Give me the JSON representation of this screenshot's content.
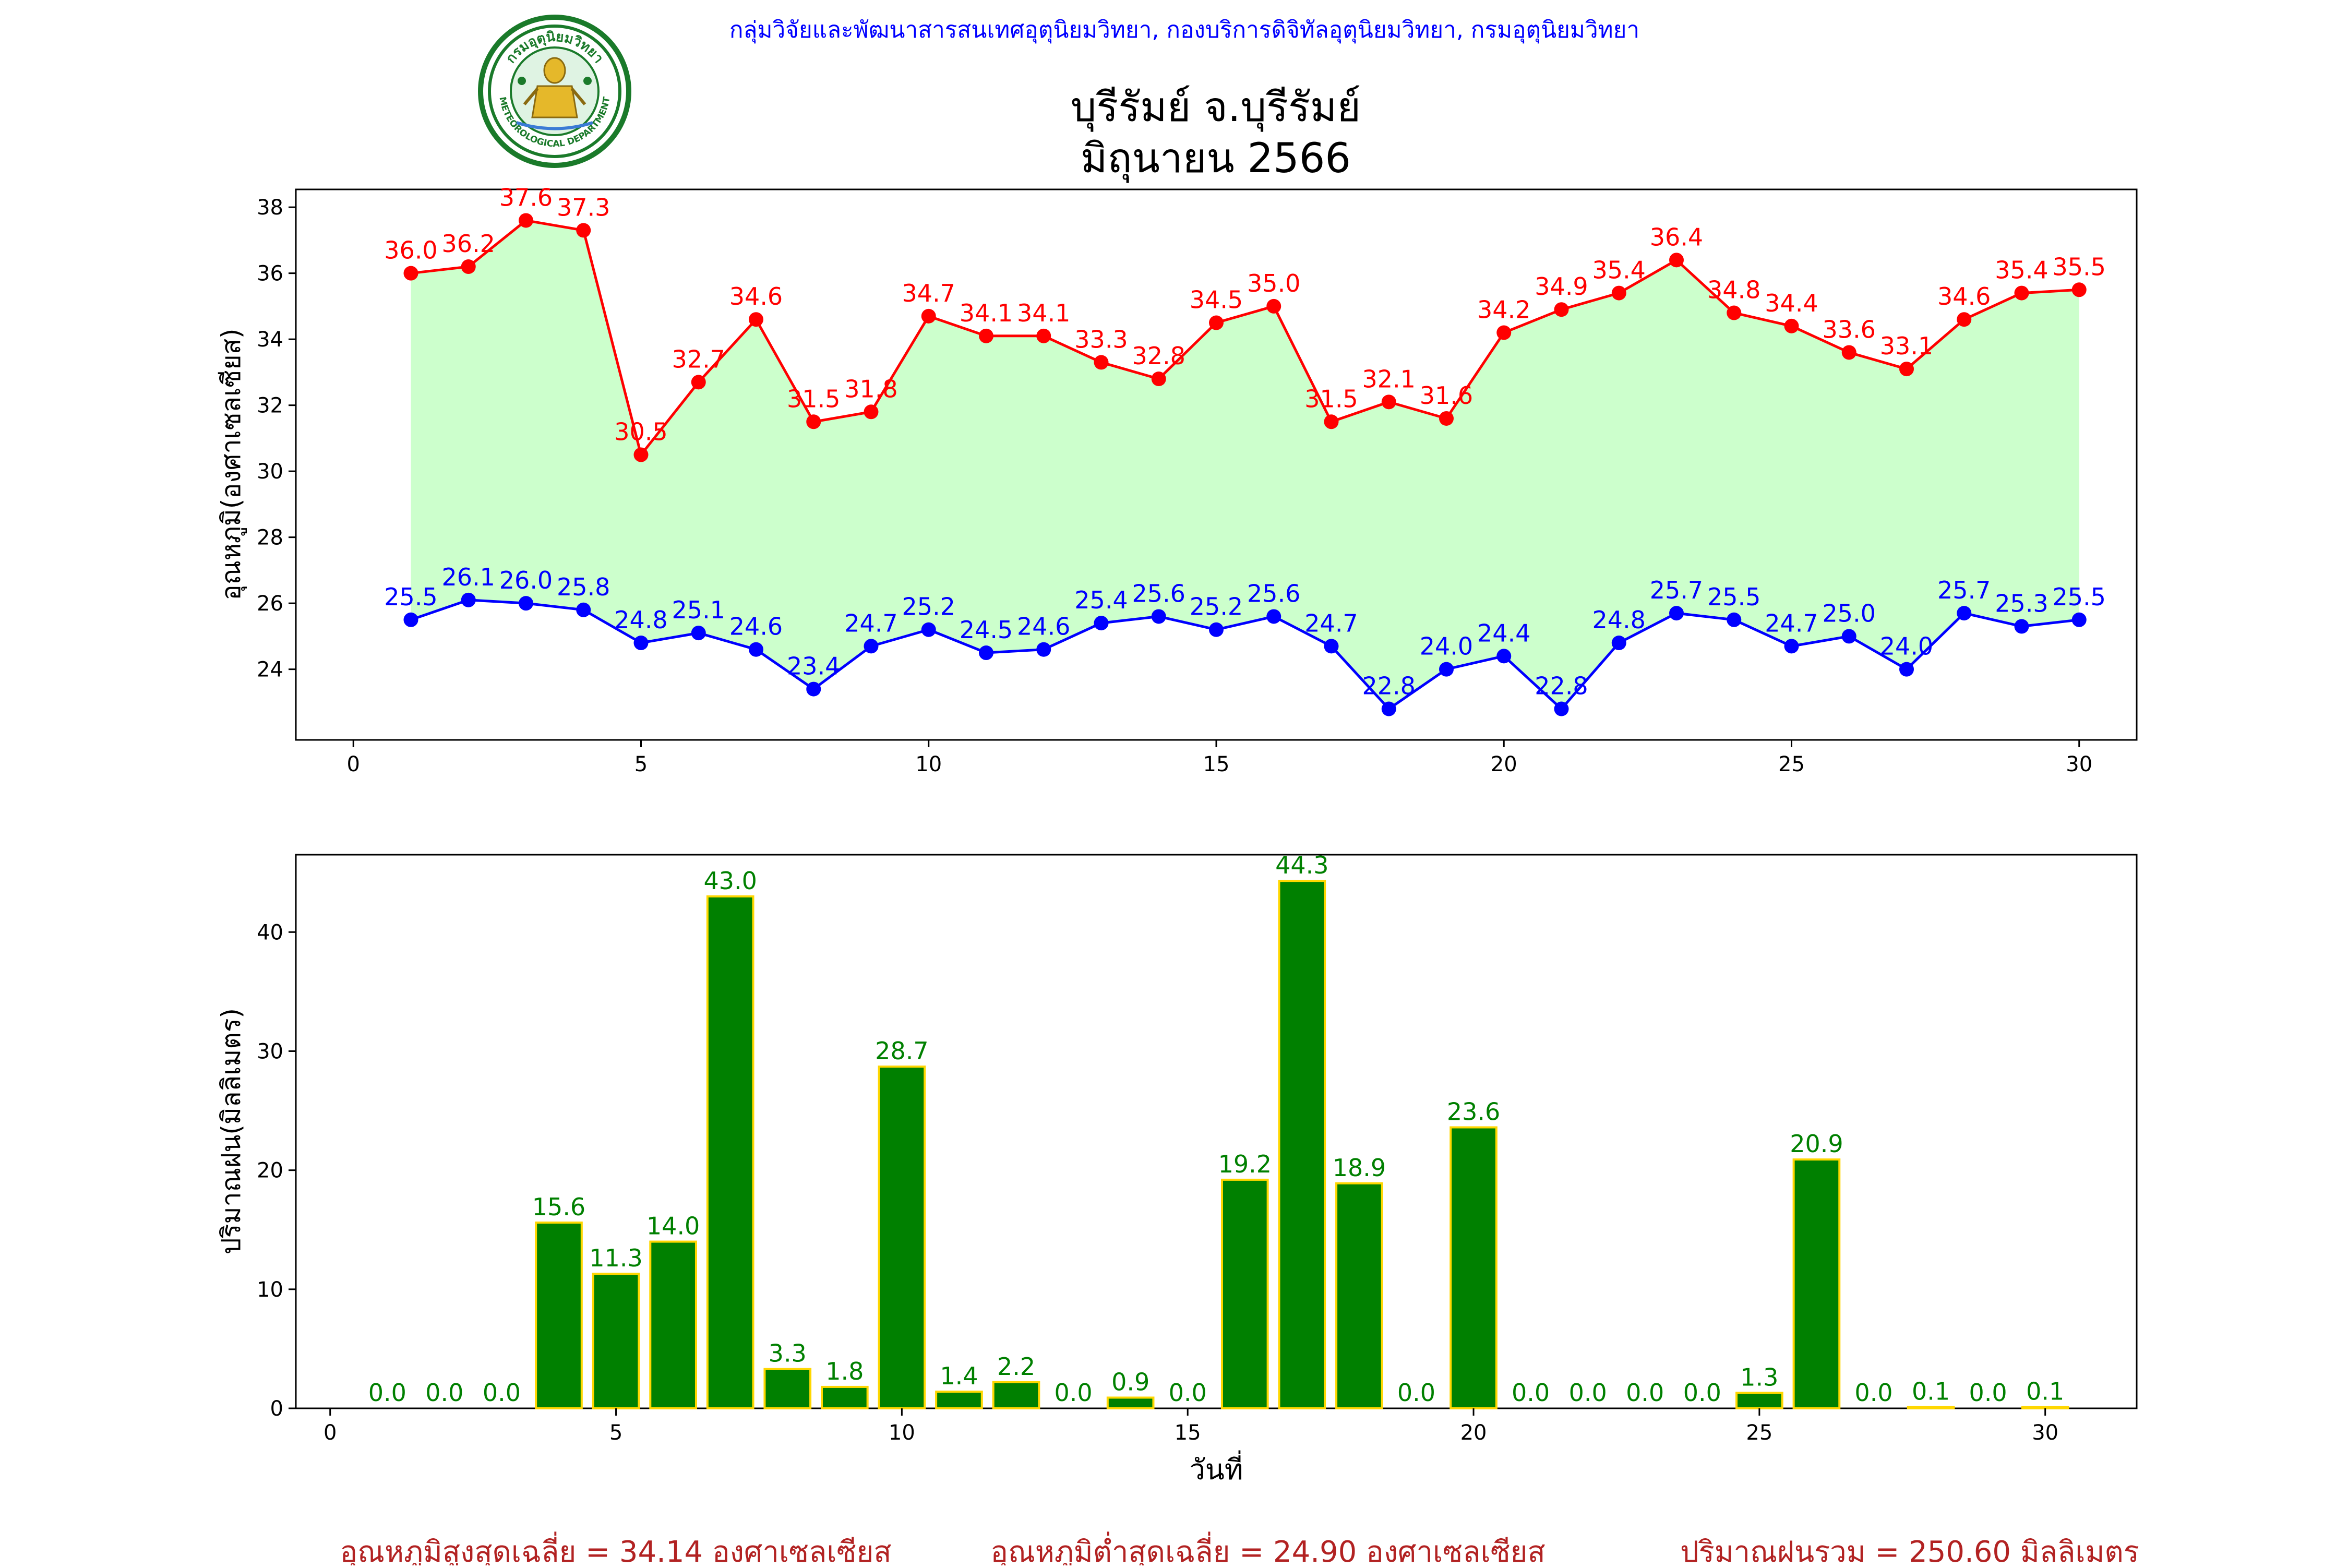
{
  "header": {
    "agency": "กลุ่มวิจัยและพัฒนาสารสนเทศอุตุนิยมวิทยา, กองบริการดิจิทัลอุตุนิยมวิทยา, กรมอุตุนิยมวิทยา",
    "title_line1": "บุรีรัมย์ จ.บุรีรัมย์",
    "title_line2": "มิถุนายน 2566",
    "logo_top_text": "กรมอุตุนิยมวิทยา",
    "logo_bottom_text": "METEOROLOGICAL DEPARTMENT"
  },
  "colors": {
    "max_line": "#ff0000",
    "min_line": "#0000ff",
    "fill": "#ccffcc",
    "bar": "#008000",
    "bar_edge": "#ffd700",
    "bar_label": "#008000",
    "footer": "#b22222",
    "agency": "#0000ff"
  },
  "chart_data": [
    {
      "type": "line",
      "ylabel": "อุณหภูมิ(องศาเซลเซียส)",
      "xlabel": "",
      "x": [
        1,
        2,
        3,
        4,
        5,
        6,
        7,
        8,
        9,
        10,
        11,
        12,
        13,
        14,
        15,
        16,
        17,
        18,
        19,
        20,
        21,
        22,
        23,
        24,
        25,
        26,
        27,
        28,
        29,
        30
      ],
      "series": [
        {
          "values": [
            36.0,
            36.2,
            37.6,
            37.3,
            30.5,
            32.7,
            34.6,
            31.5,
            31.8,
            34.7,
            34.1,
            34.1,
            33.3,
            32.8,
            34.5,
            35.0,
            31.5,
            32.1,
            31.6,
            34.2,
            34.9,
            35.4,
            36.4,
            34.8,
            34.4,
            33.6,
            33.1,
            34.6,
            35.4,
            35.5
          ]
        },
        {
          "values": [
            25.5,
            26.1,
            26.0,
            25.8,
            24.8,
            25.1,
            24.6,
            23.4,
            24.7,
            25.2,
            24.5,
            24.6,
            25.4,
            25.6,
            25.2,
            25.6,
            24.7,
            22.8,
            24.0,
            24.4,
            22.8,
            24.8,
            25.7,
            25.5,
            24.7,
            25.0,
            24.0,
            25.7,
            25.3,
            25.5
          ]
        }
      ],
      "xlim": [
        -1,
        31
      ],
      "ylim": [
        21.86,
        38.54
      ],
      "xticks": [
        0,
        5,
        10,
        15,
        20,
        25,
        30
      ],
      "yticks": [
        24,
        26,
        28,
        30,
        32,
        34,
        36,
        38
      ],
      "grid": false,
      "fill_between": true
    },
    {
      "type": "bar",
      "ylabel": "ปริมาณฝน(มิลลิเมตร)",
      "xlabel": "วันที่",
      "x": [
        1,
        2,
        3,
        4,
        5,
        6,
        7,
        8,
        9,
        10,
        11,
        12,
        13,
        14,
        15,
        16,
        17,
        18,
        19,
        20,
        21,
        22,
        23,
        24,
        25,
        26,
        27,
        28,
        29,
        30
      ],
      "values": [
        0.0,
        0.0,
        0.0,
        15.6,
        11.3,
        14.0,
        43.0,
        3.3,
        1.8,
        28.7,
        1.4,
        2.2,
        0.0,
        0.9,
        0.0,
        19.2,
        44.3,
        18.9,
        0.0,
        23.6,
        0.0,
        0.0,
        0.0,
        0.0,
        1.3,
        20.9,
        0.0,
        0.1,
        0.0,
        0.1
      ],
      "labels": [
        "0.0",
        "0.0",
        "0.0",
        "15.6",
        "11.3",
        "14.0",
        "43.0",
        "3.3",
        "1.8",
        "28.7",
        "1.4",
        "2.2",
        "0.0",
        "0.9",
        "0.0",
        "19.2",
        "44.3",
        "18.9",
        "0.0",
        "23.6",
        "0.0",
        "0.0",
        "0.0",
        "0.0",
        "1.3",
        "20.9",
        "0.0",
        "0.1",
        "0.0",
        "0.1"
      ],
      "xlim": [
        -0.6,
        31.6
      ],
      "ylim": [
        0,
        46.5
      ],
      "xticks": [
        0,
        5,
        10,
        15,
        20,
        25,
        30
      ],
      "yticks": [
        0,
        10,
        20,
        30,
        40
      ],
      "grid": false
    }
  ],
  "footer": {
    "avg_max": "อุณหภูมิสูงสุดเฉลี่ย = 34.14 องศาเซลเซียส",
    "avg_min": "อุณหภูมิต่ำสุดเฉลี่ย = 24.90 องศาเซลเซียส",
    "total_rain": "ปริมาณฝนรวม = 250.60 มิลลิเมตร"
  }
}
